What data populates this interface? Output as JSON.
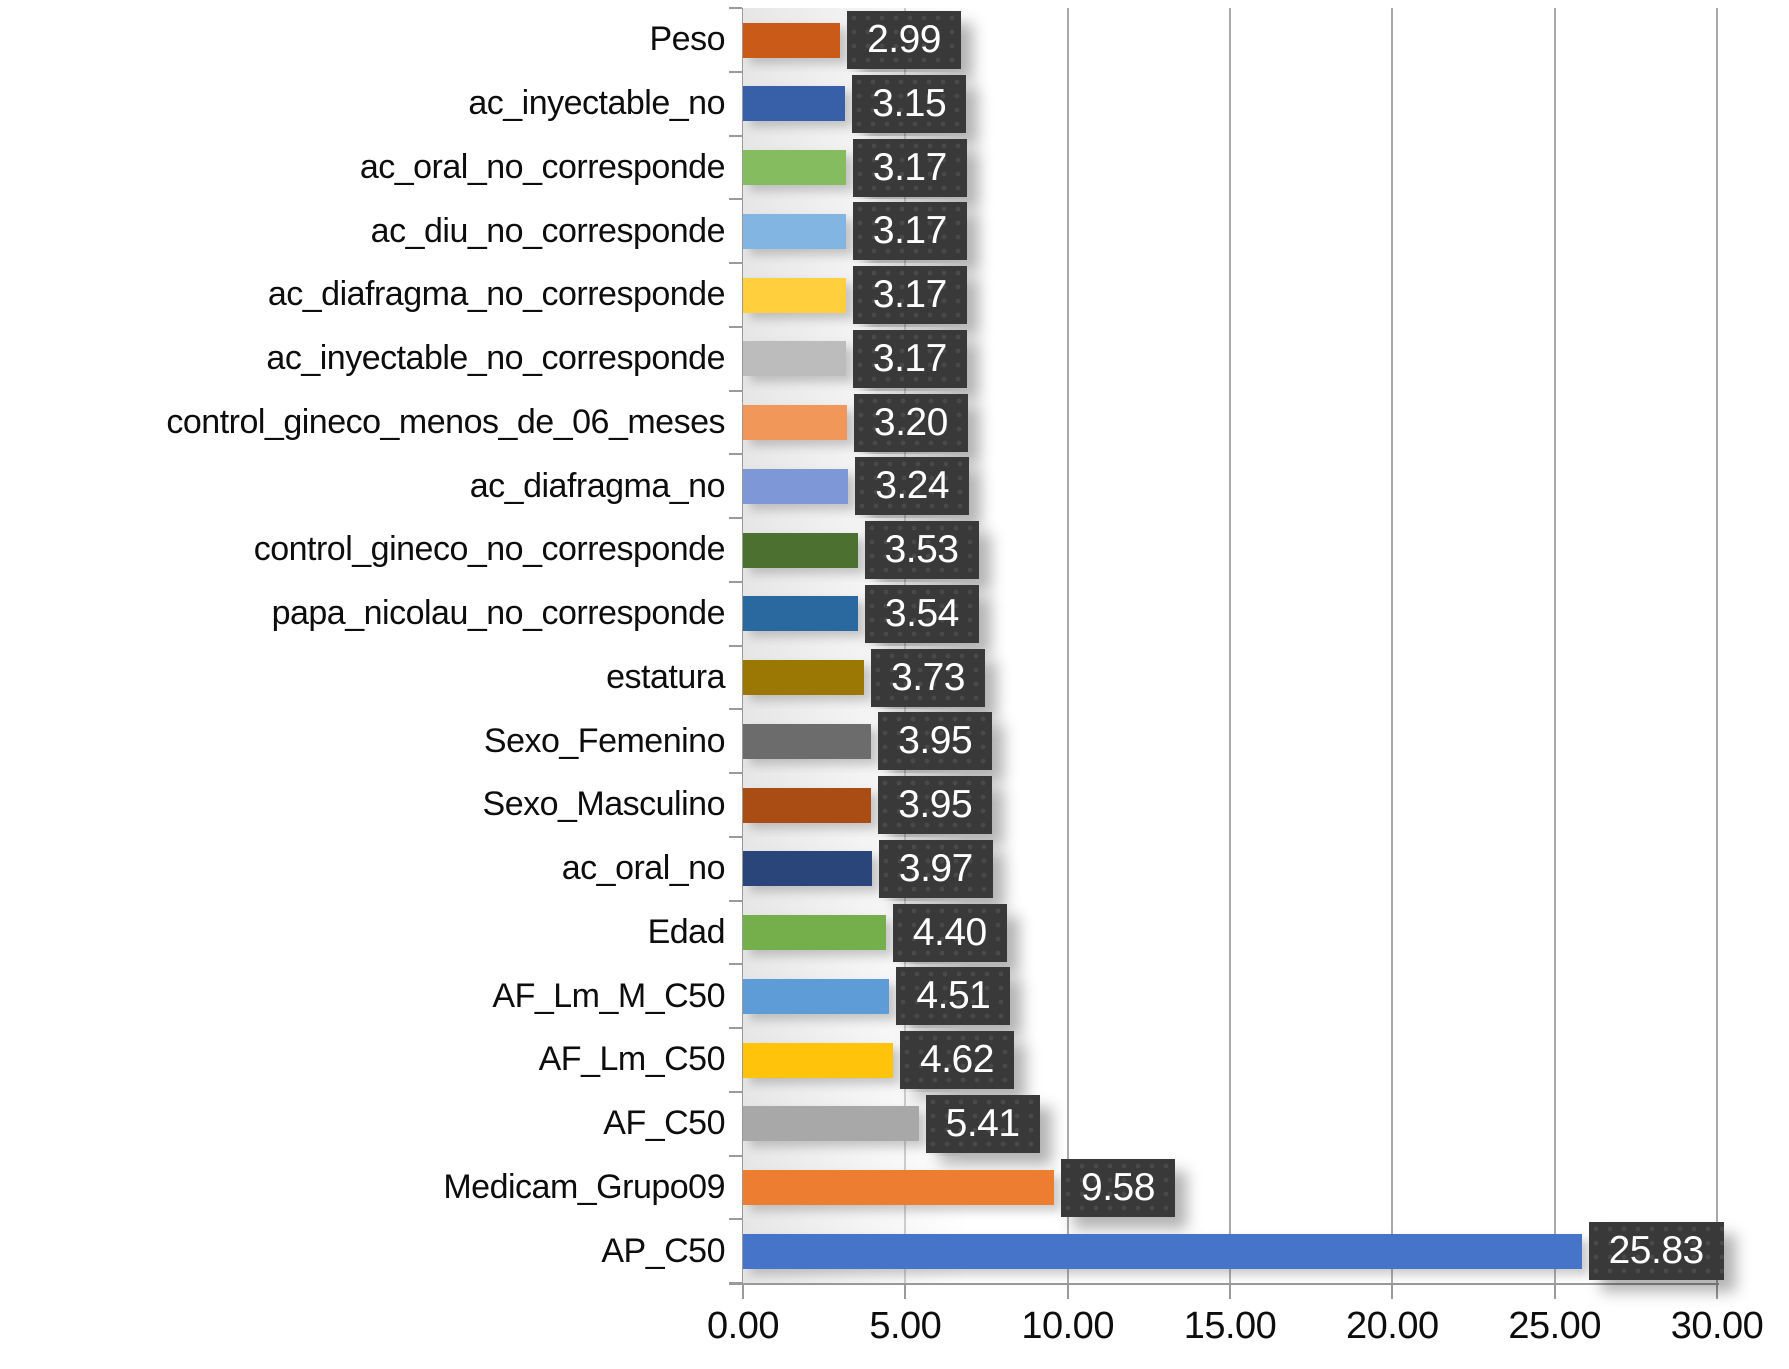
{
  "chart_data": {
    "type": "bar",
    "orientation": "horizontal",
    "title": "",
    "xlabel": "",
    "ylabel": "",
    "grid": true,
    "legend": false,
    "xlim": [
      0,
      30
    ],
    "x_tick_step": 5,
    "x_tick_labels": [
      "0.00",
      "5.00",
      "10.00",
      "15.00",
      "20.00",
      "25.00",
      "30.00"
    ],
    "value_label_style": {
      "box_background": "#393939",
      "text_color": "#ffffff"
    },
    "axis_color": "#9a9a9a",
    "gridline_color": "#a9a9a9",
    "bars": [
      {
        "label": "Peso",
        "value": 2.99,
        "display": "2.99",
        "color": "#CA5A18"
      },
      {
        "label": "ac_inyectable_no",
        "value": 3.15,
        "display": "3.15",
        "color": "#3760A8"
      },
      {
        "label": "ac_oral_no_corresponde",
        "value": 3.17,
        "display": "3.17",
        "color": "#86BC60"
      },
      {
        "label": "ac_diu_no_corresponde",
        "value": 3.17,
        "display": "3.17",
        "color": "#83B5E2"
      },
      {
        "label": "ac_diafragma_no_corresponde",
        "value": 3.17,
        "display": "3.17",
        "color": "#FFCF3E"
      },
      {
        "label": "ac_inyectable_no_corresponde",
        "value": 3.17,
        "display": "3.17",
        "color": "#BCBCBC"
      },
      {
        "label": "control_gineco_menos_de_06_meses",
        "value": 3.2,
        "display": "3.20",
        "color": "#F1975A"
      },
      {
        "label": "ac_diafragma_no",
        "value": 3.24,
        "display": "3.24",
        "color": "#7E97D6"
      },
      {
        "label": "control_gineco_no_corresponde",
        "value": 3.53,
        "display": "3.53",
        "color": "#4C7030"
      },
      {
        "label": "papa_nicolau_no_corresponde",
        "value": 3.54,
        "display": "3.54",
        "color": "#2969A0"
      },
      {
        "label": "estatura",
        "value": 3.73,
        "display": "3.73",
        "color": "#9B7704"
      },
      {
        "label": "Sexo_Femenino",
        "value": 3.95,
        "display": "3.95",
        "color": "#6C6C6C"
      },
      {
        "label": "Sexo_Masculino",
        "value": 3.95,
        "display": "3.95",
        "color": "#AA4D14"
      },
      {
        "label": "ac_oral_no",
        "value": 3.97,
        "display": "3.97",
        "color": "#2A4579"
      },
      {
        "label": "Edad",
        "value": 4.4,
        "display": "4.40",
        "color": "#74AF4C"
      },
      {
        "label": "AF_Lm_M_C50",
        "value": 4.51,
        "display": "4.51",
        "color": "#5D9CD6"
      },
      {
        "label": "AF_Lm_C50",
        "value": 4.62,
        "display": "4.62",
        "color": "#FFC30B"
      },
      {
        "label": "AF_C50",
        "value": 5.41,
        "display": "5.41",
        "color": "#A8A8A8"
      },
      {
        "label": "Medicam_Grupo09",
        "value": 9.58,
        "display": "9.58",
        "color": "#ED7D31"
      },
      {
        "label": "AP_C50",
        "value": 25.83,
        "display": "25.83",
        "color": "#4674C8"
      }
    ]
  }
}
